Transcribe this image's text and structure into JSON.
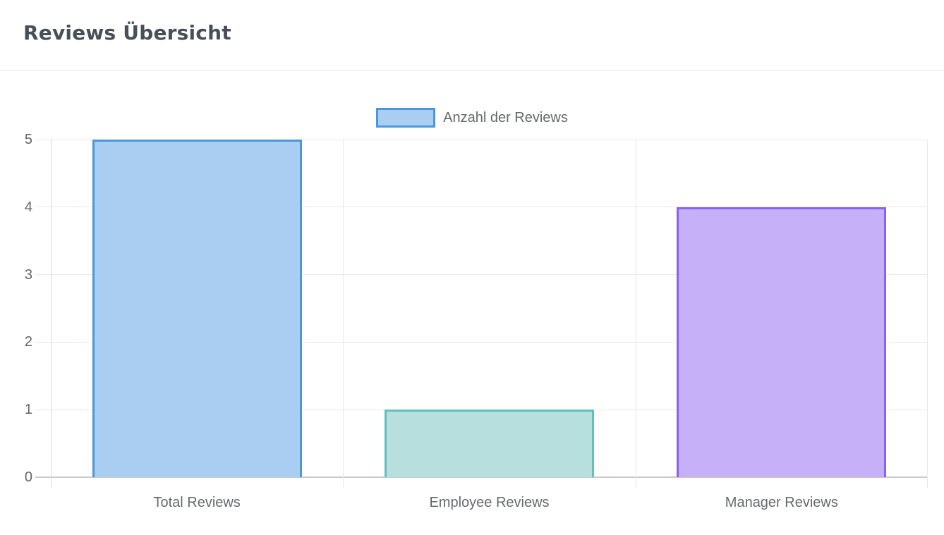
{
  "header": {
    "title": "Reviews Übersicht"
  },
  "chart_data": {
    "type": "bar",
    "title": "Reviews Übersicht",
    "legend": {
      "label": "Anzahl der Reviews",
      "position": "top"
    },
    "categories": [
      "Total Reviews",
      "Employee Reviews",
      "Manager Reviews"
    ],
    "series": [
      {
        "name": "Anzahl der Reviews",
        "values": [
          5,
          1,
          4
        ]
      }
    ],
    "xlabel": "",
    "ylabel": "",
    "ylim": [
      0,
      5
    ],
    "yticks": [
      0,
      1,
      2,
      3,
      4,
      5
    ],
    "grid": true,
    "colors": {
      "bars": [
        {
          "fill": "#A9CEF2",
          "border": "#4E96DC"
        },
        {
          "fill": "#B7DFDE",
          "border": "#60BFBF"
        },
        {
          "fill": "#C6B1F8",
          "border": "#8B61F1"
        }
      ],
      "legend_swatch": {
        "fill": "#A9CEF2",
        "border": "#4E96DC"
      },
      "grid_line": "#e9e9e9",
      "axis_line": "#c9c9c9",
      "tick_text": "#666666",
      "title_text": "#474f58"
    }
  }
}
